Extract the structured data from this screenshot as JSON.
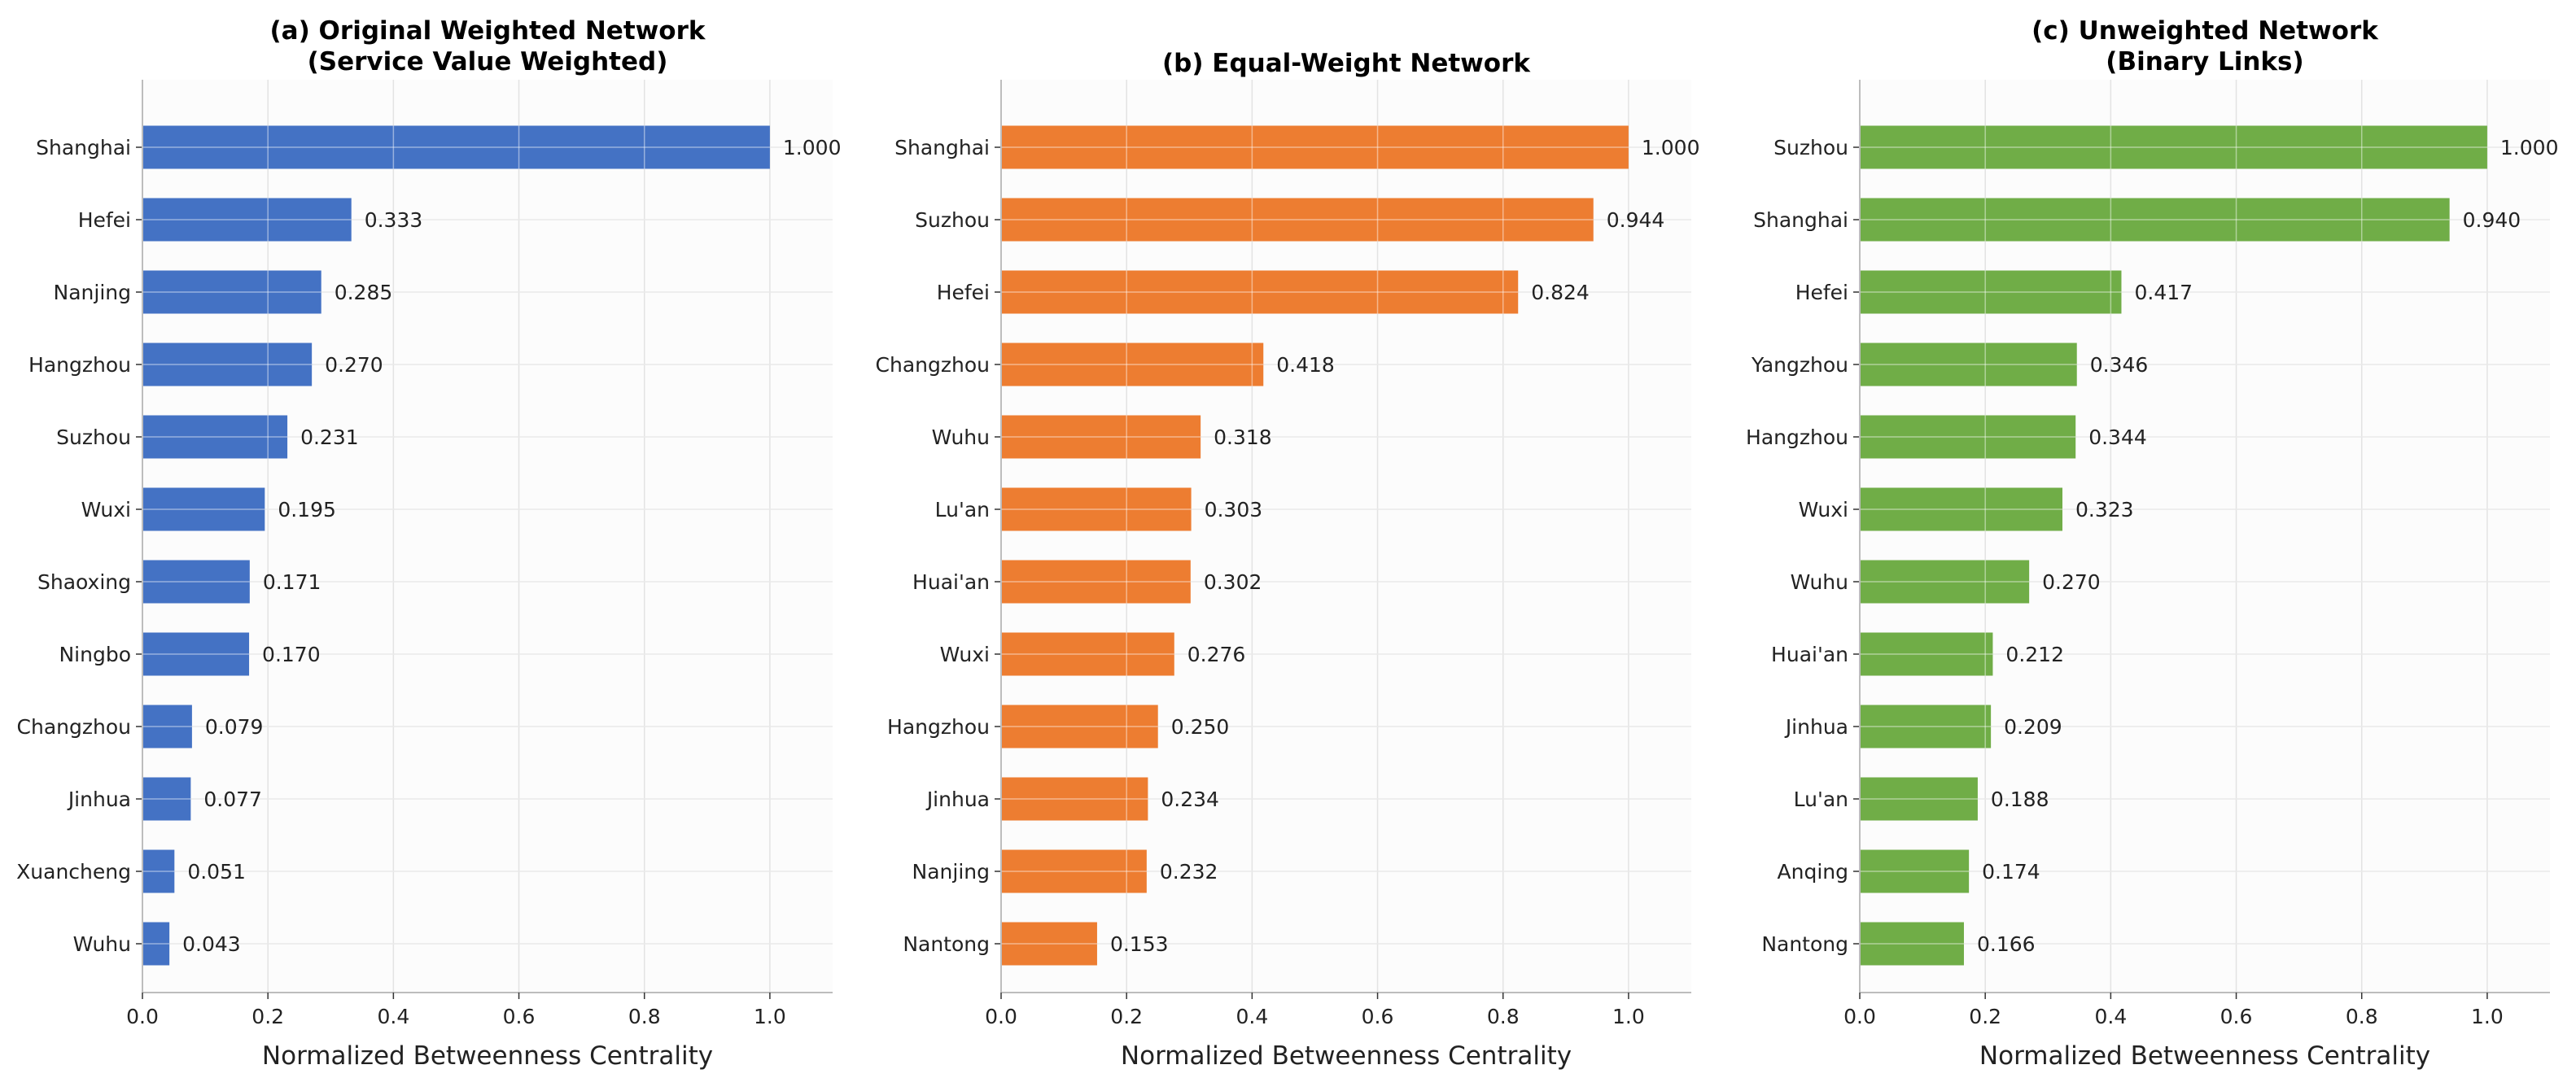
{
  "chart_data": [
    {
      "type": "bar",
      "orientation": "horizontal",
      "title": [
        "(a) Original Weighted Network",
        "(Service Value Weighted)"
      ],
      "xlabel": "Normalized Betweenness Centrality",
      "ylabel": "",
      "xlim": [
        0,
        1.1
      ],
      "xticks": [
        "0.0",
        "0.2",
        "0.4",
        "0.6",
        "0.8",
        "1.0"
      ],
      "grid": true,
      "color": "#4472C4",
      "categories": [
        "Shanghai",
        "Hefei",
        "Nanjing",
        "Hangzhou",
        "Suzhou",
        "Wuxi",
        "Shaoxing",
        "Ningbo",
        "Changzhou",
        "Jinhua",
        "Xuancheng",
        "Wuhu"
      ],
      "values": [
        1.0,
        0.333,
        0.285,
        0.27,
        0.231,
        0.195,
        0.171,
        0.17,
        0.079,
        0.077,
        0.051,
        0.043
      ],
      "labels": [
        "1.000",
        "0.333",
        "0.285",
        "0.270",
        "0.231",
        "0.195",
        "0.171",
        "0.170",
        "0.079",
        "0.077",
        "0.051",
        "0.043"
      ]
    },
    {
      "type": "bar",
      "orientation": "horizontal",
      "title": [
        "(b) Equal-Weight Network"
      ],
      "xlabel": "Normalized Betweenness Centrality",
      "ylabel": "",
      "xlim": [
        0,
        1.1
      ],
      "xticks": [
        "0.0",
        "0.2",
        "0.4",
        "0.6",
        "0.8",
        "1.0"
      ],
      "grid": true,
      "color": "#ED7D31",
      "categories": [
        "Shanghai",
        "Suzhou",
        "Hefei",
        "Changzhou",
        "Wuhu",
        "Lu'an",
        "Huai'an",
        "Wuxi",
        "Hangzhou",
        "Jinhua",
        "Nanjing",
        "Nantong"
      ],
      "values": [
        1.0,
        0.944,
        0.824,
        0.418,
        0.318,
        0.303,
        0.302,
        0.276,
        0.25,
        0.234,
        0.232,
        0.153
      ],
      "labels": [
        "1.000",
        "0.944",
        "0.824",
        "0.418",
        "0.318",
        "0.303",
        "0.302",
        "0.276",
        "0.250",
        "0.234",
        "0.232",
        "0.153"
      ]
    },
    {
      "type": "bar",
      "orientation": "horizontal",
      "title": [
        "(c) Unweighted Network",
        "(Binary Links)"
      ],
      "xlabel": "Normalized Betweenness Centrality",
      "ylabel": "",
      "xlim": [
        0,
        1.1
      ],
      "xticks": [
        "0.0",
        "0.2",
        "0.4",
        "0.6",
        "0.8",
        "1.0"
      ],
      "grid": true,
      "color": "#70AD47",
      "categories": [
        "Suzhou",
        "Shanghai",
        "Hefei",
        "Yangzhou",
        "Hangzhou",
        "Wuxi",
        "Wuhu",
        "Huai'an",
        "Jinhua",
        "Lu'an",
        "Anqing",
        "Nantong"
      ],
      "values": [
        1.0,
        0.94,
        0.417,
        0.346,
        0.344,
        0.323,
        0.27,
        0.212,
        0.209,
        0.188,
        0.174,
        0.166
      ],
      "labels": [
        "1.000",
        "0.940",
        "0.417",
        "0.346",
        "0.344",
        "0.323",
        "0.270",
        "0.212",
        "0.209",
        "0.188",
        "0.174",
        "0.166"
      ]
    }
  ]
}
